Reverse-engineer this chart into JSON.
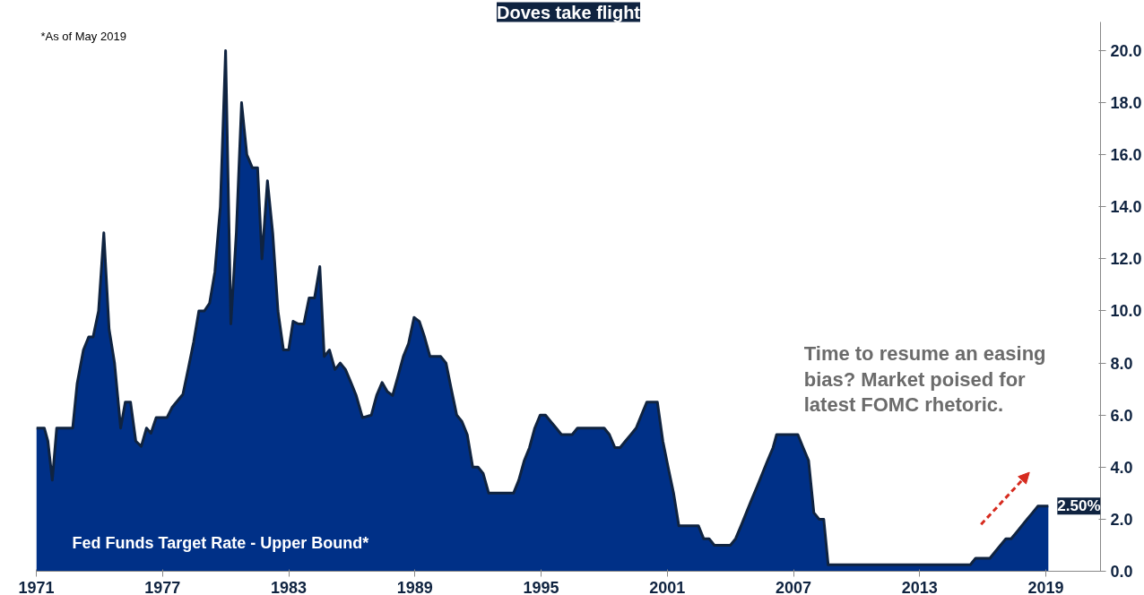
{
  "chart_data": {
    "type": "area",
    "title": "Doves take flight",
    "annotations": [
      "*As of May 2019",
      "Time to resume an easing bias? Market poised for latest FOMC rhetoric."
    ],
    "x": [
      1971.0,
      1971.38,
      1971.55,
      1971.76,
      1971.97,
      1972.73,
      1972.94,
      1973.24,
      1973.49,
      1973.7,
      1973.96,
      1974.21,
      1974.46,
      1974.72,
      1975.01,
      1975.23,
      1975.48,
      1975.73,
      1975.99,
      1976.24,
      1976.45,
      1976.7,
      1977.21,
      1977.46,
      1977.97,
      1978.23,
      1978.48,
      1978.73,
      1978.99,
      1979.24,
      1979.49,
      1979.75,
      1980.0,
      1980.25,
      1980.51,
      1980.76,
      1981.01,
      1981.27,
      1981.52,
      1981.73,
      1981.99,
      1982.24,
      1982.49,
      1982.75,
      1983.0,
      1983.21,
      1983.46,
      1983.72,
      1983.97,
      1984.23,
      1984.48,
      1984.69,
      1984.94,
      1985.2,
      1985.45,
      1985.7,
      1985.96,
      1986.21,
      1986.51,
      1986.93,
      1987.18,
      1987.44,
      1987.69,
      1987.94,
      1988.2,
      1988.45,
      1988.7,
      1988.96,
      1989.21,
      1989.46,
      1989.72,
      1990.23,
      1990.48,
      1990.73,
      1990.99,
      1991.24,
      1991.49,
      1991.75,
      1992.0,
      1992.25,
      1992.51,
      1993.69,
      1993.94,
      1994.2,
      1994.45,
      1994.7,
      1994.96,
      1995.21,
      1995.46,
      1995.72,
      1995.97,
      1996.48,
      1996.73,
      1998.0,
      1998.25,
      1998.51,
      1998.76,
      1999.01,
      1999.27,
      1999.52,
      1999.77,
      2000.03,
      2000.53,
      2000.79,
      2001.04,
      2001.3,
      2001.55,
      2002.48,
      2002.73,
      2002.99,
      2003.24,
      2004.0,
      2004.25,
      2004.51,
      2004.76,
      2005.01,
      2005.27,
      2005.52,
      2005.77,
      2006.03,
      2006.2,
      2007.21,
      2007.46,
      2007.72,
      2007.97,
      2008.22,
      2008.44,
      2008.65,
      2015.41,
      2015.66,
      2016.34,
      2016.59,
      2017.1,
      2017.35,
      2017.61,
      2017.86,
      2018.11,
      2018.37,
      2018.62,
      2019.12
    ],
    "series": [
      {
        "name": "Fed Funds Target Rate - Upper Bound*",
        "color": "#003087",
        "values": [
          5.5,
          5.5,
          5.0,
          3.5,
          5.5,
          5.5,
          7.2,
          8.5,
          9.0,
          9.0,
          10.0,
          13.0,
          9.3,
          8.0,
          5.5,
          6.5,
          6.5,
          5.0,
          4.8,
          5.5,
          5.3,
          5.9,
          5.9,
          6.3,
          6.8,
          7.8,
          8.8,
          10.0,
          10.0,
          10.3,
          11.5,
          14.0,
          20.0,
          9.5,
          13.0,
          18.0,
          16.0,
          15.5,
          15.5,
          12.0,
          15.0,
          13.0,
          10.0,
          8.5,
          8.5,
          9.6,
          9.5,
          9.5,
          10.5,
          10.5,
          11.7,
          8.25,
          8.5,
          7.75,
          8.0,
          7.75,
          7.25,
          6.75,
          5.9,
          6.0,
          6.75,
          7.25,
          6.9,
          6.75,
          7.5,
          8.25,
          8.75,
          9.75,
          9.6,
          9.0,
          8.25,
          8.25,
          8.0,
          7.0,
          6.0,
          5.75,
          5.25,
          4.0,
          4.0,
          3.75,
          3.0,
          3.0,
          3.5,
          4.25,
          4.75,
          5.5,
          6.0,
          6.0,
          5.75,
          5.5,
          5.25,
          5.25,
          5.5,
          5.5,
          5.25,
          4.75,
          4.75,
          5.0,
          5.25,
          5.5,
          6.0,
          6.5,
          6.5,
          5.0,
          4.0,
          3.0,
          1.75,
          1.75,
          1.25,
          1.25,
          1.0,
          1.0,
          1.25,
          1.75,
          2.25,
          2.75,
          3.25,
          3.75,
          4.25,
          4.75,
          5.25,
          5.25,
          4.75,
          4.25,
          2.25,
          2.0,
          2.0,
          0.25,
          0.25,
          0.5,
          0.5,
          0.75,
          1.25,
          1.25,
          1.5,
          1.75,
          2.0,
          2.25,
          2.5,
          2.5
        ],
        "value_labels": [
          null,
          null,
          null,
          null,
          null,
          null,
          null,
          null,
          null,
          null,
          null,
          null,
          null,
          null,
          null,
          null,
          null,
          null,
          null,
          null,
          null,
          null,
          null,
          null,
          null,
          null,
          null,
          null,
          null,
          null,
          null,
          null,
          null,
          null,
          null,
          null,
          null,
          null,
          null,
          null,
          null,
          null,
          null,
          null,
          null,
          null,
          null,
          null,
          null,
          null,
          null,
          null,
          null,
          null,
          null,
          null,
          null,
          null,
          null,
          null,
          null,
          null,
          null,
          null,
          null,
          null,
          null,
          null,
          null,
          null,
          null,
          null,
          null,
          null,
          null,
          null,
          null,
          null,
          null,
          null,
          null,
          null,
          null,
          null,
          null,
          null,
          null,
          null,
          null,
          null,
          null,
          null,
          null,
          null,
          null,
          null,
          null,
          null,
          null,
          null,
          null,
          null,
          null,
          null,
          null,
          null,
          null,
          null,
          null,
          null,
          null,
          null,
          null,
          null,
          null,
          null,
          null,
          null,
          null,
          null,
          null,
          null,
          null,
          null,
          null,
          null,
          null,
          null,
          null,
          null,
          null,
          null,
          null,
          null,
          null,
          null,
          null,
          null,
          null,
          "2.50%"
        ]
      }
    ],
    "xlim": [
      1971,
      2021.6
    ],
    "xticks": [
      1971,
      1977,
      1983,
      1989,
      1995,
      2001,
      2007,
      2013,
      2019
    ],
    "ylim": [
      0,
      21.1
    ],
    "yticks": [
      {
        "value": 0,
        "label": "0.0"
      },
      {
        "value": 2,
        "label": "2.0"
      },
      {
        "value": 4,
        "label": "4.0"
      },
      {
        "value": 6,
        "label": "6.0"
      },
      {
        "value": 8,
        "label": "8.0"
      },
      {
        "value": 10,
        "label": "10.0"
      },
      {
        "value": 12,
        "label": "12.0"
      },
      {
        "value": 14,
        "label": "14.0"
      },
      {
        "value": 16,
        "label": "16.0"
      },
      {
        "value": 18,
        "label": "18.0"
      },
      {
        "value": 20,
        "label": "20.0"
      }
    ],
    "grid": false
  }
}
